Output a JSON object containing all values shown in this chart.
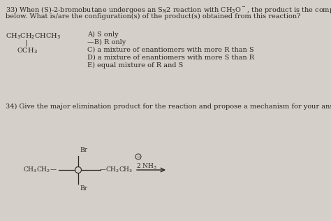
{
  "bg_color": "#d4cfc8",
  "text_color": "#2a2520",
  "line_color": "#2a2520",
  "q33_line1": "33) When (S)-2-bromobutane undergoes an S$_N$2 reaction with CH$_3$O$^-$, the product is the compound sho",
  "q33_line2": "below. What is/are the configuration(s) of the product(s) obtained from this reaction?",
  "struct_chem": "CH$_3$CH$_2$CHCH$_3$",
  "struct_vert": "|",
  "struct_och3": "OCH$_3$",
  "ans_A": "A) S only",
  "ans_B": "—B) R only",
  "ans_C": "C) a mixture of enantiomers with more R than S",
  "ans_D": "D) a mixture of enantiomers with more S than R",
  "ans_E": "E) equal mixture of R and S",
  "q34_line": "34) Give the major elimination product for the reaction and propose a mechanism for your answer",
  "left_group": "CH$_3$CH$_2$—",
  "right_group": "—CH$_2$CH$_3$",
  "br_label": "Br",
  "reagent_num": "2",
  "reagent_mol": "NH$_3$",
  "font_size": 7.0,
  "small_font": 6.5
}
